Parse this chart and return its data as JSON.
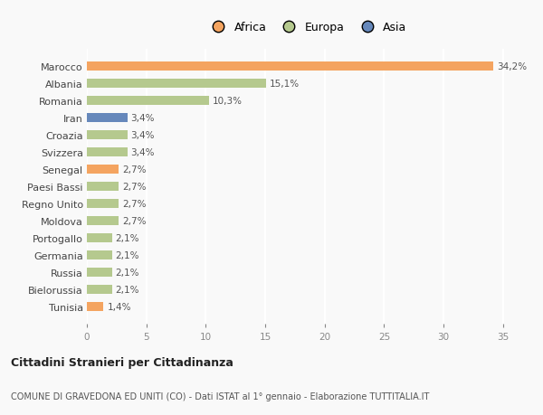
{
  "countries": [
    "Marocco",
    "Albania",
    "Romania",
    "Iran",
    "Croazia",
    "Svizzera",
    "Senegal",
    "Paesi Bassi",
    "Regno Unito",
    "Moldova",
    "Portogallo",
    "Germania",
    "Russia",
    "Bielorussia",
    "Tunisia"
  ],
  "values": [
    34.2,
    15.1,
    10.3,
    3.4,
    3.4,
    3.4,
    2.7,
    2.7,
    2.7,
    2.7,
    2.1,
    2.1,
    2.1,
    2.1,
    1.4
  ],
  "labels": [
    "34,2%",
    "15,1%",
    "10,3%",
    "3,4%",
    "3,4%",
    "3,4%",
    "2,7%",
    "2,7%",
    "2,7%",
    "2,7%",
    "2,1%",
    "2,1%",
    "2,1%",
    "2,1%",
    "1,4%"
  ],
  "continents": [
    "Africa",
    "Europa",
    "Europa",
    "Asia",
    "Europa",
    "Europa",
    "Africa",
    "Europa",
    "Europa",
    "Europa",
    "Europa",
    "Europa",
    "Europa",
    "Europa",
    "Africa"
  ],
  "colors": {
    "Africa": "#F4A460",
    "Europa": "#B5C98E",
    "Asia": "#6688BB"
  },
  "xlim": [
    0,
    37
  ],
  "xticks": [
    0,
    5,
    10,
    15,
    20,
    25,
    30,
    35
  ],
  "title1": "Cittadini Stranieri per Cittadinanza",
  "title2": "COMUNE DI GRAVEDONA ED UNITI (CO) - Dati ISTAT al 1° gennaio - Elaborazione TUTTITALIA.IT",
  "bg_color": "#F9F9F9",
  "bar_height": 0.55,
  "label_fontsize": 7.5,
  "ytick_fontsize": 8,
  "xtick_fontsize": 7.5
}
